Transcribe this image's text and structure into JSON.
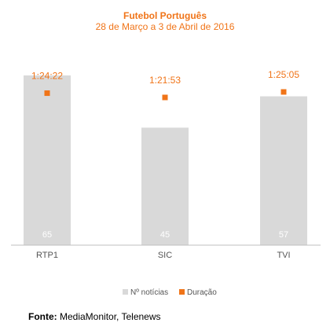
{
  "colors": {
    "accent": "#f07418",
    "bar": "#d9d9d9",
    "axis": "#bfbfbf",
    "text": "#555555"
  },
  "chart_data": {
    "type": "bar",
    "title": "Futebol Português",
    "subtitle": "28 de Março  a 3 de Abril de 2016",
    "categories": [
      "RTP1",
      "SIC",
      "TVI"
    ],
    "series": [
      {
        "name": "Nº notícias",
        "type": "bar",
        "values": [
          65,
          45,
          57
        ],
        "labels": [
          "65",
          "45",
          "57"
        ]
      },
      {
        "name": "Duração",
        "type": "marker",
        "values": [
          "1:24:22",
          "1:21:53",
          "1:25:05"
        ]
      }
    ],
    "legend_position": "bottom",
    "grid": false
  },
  "source": {
    "label": "Fonte:",
    "text": "MediaMonitor, Telenews"
  }
}
